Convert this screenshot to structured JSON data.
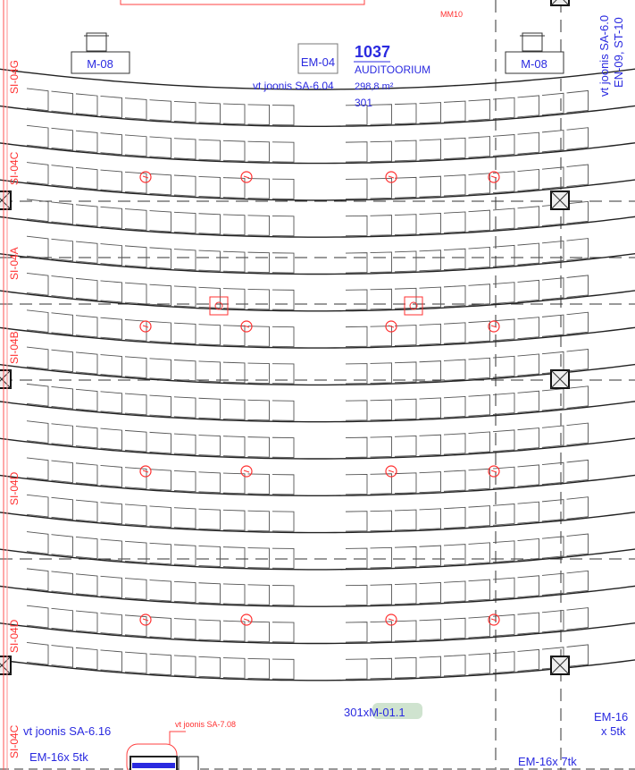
{
  "room": {
    "number": "1037",
    "name": "AUDITOORIUM",
    "area": "298,8 m²",
    "seats": "301"
  },
  "labels": {
    "em04": "EM-04",
    "m08_left": "M-08",
    "m08_right": "M-08",
    "ref_sa604": "vt joonis SA-6.04",
    "ref_right_1": "vt joonis SA-6.0",
    "ref_right_2": "EN-09, ST-10",
    "mm10": "MM10",
    "seat_tag": "301xM-01.1",
    "ref_sa616": "vt joonis SA-6.16",
    "ref_sa708": "vt joonis SA-7.08",
    "em16_left": "EM-16x 5tk",
    "em16_right_1": "EM-16",
    "em16_right_2": "x 5tk",
    "em16_bottom": "EM-16x 7tk"
  },
  "axis_labels": [
    "SI-04G",
    "SI-04C",
    "SI-04A",
    "SI-04B",
    "SI-04D",
    "SI-04D",
    "SI-04C"
  ],
  "colors": {
    "line": "#222222",
    "annotation": "#2a2ae0",
    "red": "#ff3030",
    "tag_bg": "#cfe3cf"
  }
}
